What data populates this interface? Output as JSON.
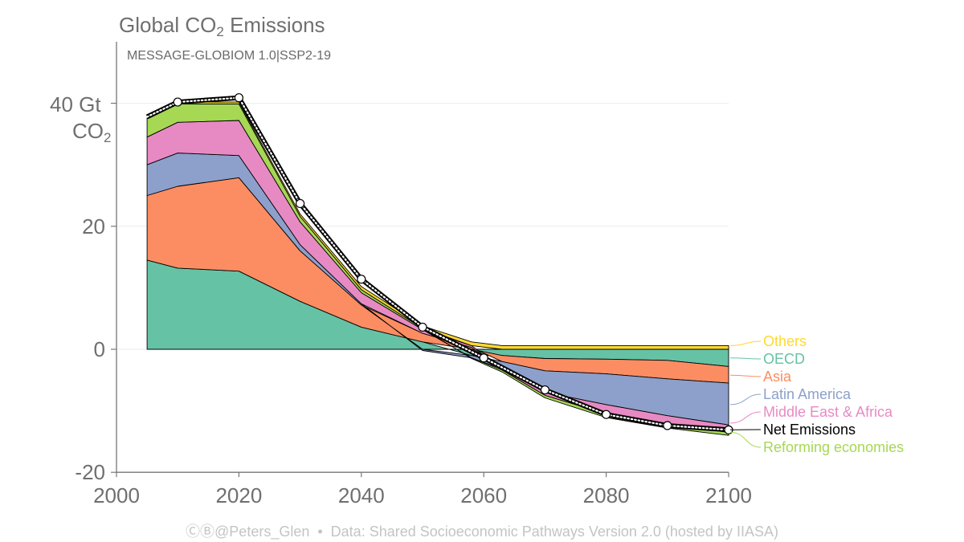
{
  "title": {
    "main": "Global CO",
    "sub": "2",
    "rest": " Emissions"
  },
  "subtitle": "MESSAGE-GLOBIOM 1.0|SSP2-19",
  "y_axis_label": {
    "value": "40 Gt",
    "unit_main": "CO",
    "unit_sub": "2"
  },
  "footer": {
    "handle": "ⒸⒷ@Peters_Glen",
    "separator": "•",
    "source": "Data: Shared Socioeconomic Pathways Version 2.0 (hosted by IIASA)"
  },
  "chart_data": {
    "type": "area",
    "stacked": true,
    "x": [
      2005,
      2010,
      2020,
      2030,
      2040,
      2050,
      2058,
      2063,
      2070,
      2080,
      2090,
      2100
    ],
    "xlim": [
      2000,
      2100
    ],
    "ylim": [
      -20,
      50
    ],
    "x_ticks": [
      "2000",
      "2020",
      "2040",
      "2060",
      "2080",
      "2100"
    ],
    "y_ticks": [
      {
        "value": 0,
        "label": "0"
      },
      {
        "value": 20,
        "label": "20"
      },
      {
        "value": -20,
        "label": "-20"
      }
    ],
    "grid": true,
    "legend_position": "right",
    "series": [
      {
        "name": "OECD",
        "color": "#66c2a5",
        "values": [
          14.5,
          13.2,
          12.7,
          7.8,
          3.6,
          1.2,
          -1.0,
          -1.0,
          -1.5,
          -1.6,
          -1.8,
          -2.8
        ]
      },
      {
        "name": "Asia",
        "color": "#fc8d62",
        "values": [
          10.5,
          13.3,
          15.2,
          8.2,
          3.6,
          1.4,
          0.3,
          -1.0,
          -2.0,
          -2.4,
          -3.0,
          -2.7
        ]
      },
      {
        "name": "Latin America",
        "color": "#8da0cb",
        "values": [
          5.0,
          5.4,
          3.6,
          1.0,
          0.2,
          -0.2,
          -0.4,
          -1.2,
          -3.5,
          -5.0,
          -6.0,
          -6.8
        ]
      },
      {
        "name": "Middle East & Africa",
        "color": "#e78ac3",
        "values": [
          4.5,
          5.0,
          5.7,
          3.7,
          1.8,
          0.6,
          0.3,
          -0.2,
          -0.5,
          -1.5,
          -1.5,
          -1.2
        ]
      },
      {
        "name": "Reforming economies",
        "color": "#a6d854",
        "values": [
          3.0,
          3.0,
          2.7,
          0.9,
          0.5,
          0.2,
          -0.1,
          -0.3,
          -0.4,
          -0.6,
          -0.5,
          -0.5
        ]
      },
      {
        "name": "Others",
        "color": "#ffd92f",
        "values": [
          0.3,
          0.3,
          0.3,
          0.4,
          0.5,
          0.4,
          0.6,
          0.6,
          0.6,
          0.6,
          0.6,
          0.6
        ]
      }
    ],
    "net_emissions": {
      "name": "Net Emissions",
      "x": [
        2005,
        2010,
        2020,
        2030,
        2040,
        2050,
        2060,
        2070,
        2080,
        2090,
        2100
      ],
      "values": [
        37.8,
        40.2,
        40.9,
        23.7,
        11.4,
        3.6,
        -1.4,
        -6.6,
        -10.6,
        -12.4,
        -13.1
      ],
      "markers_at": [
        2010,
        2020,
        2030,
        2040,
        2050,
        2060,
        2070,
        2080,
        2090,
        2100
      ]
    },
    "legend": [
      {
        "label": "Others",
        "color": "#ffd92f",
        "value": 0.6
      },
      {
        "label": "OECD",
        "color": "#66c2a5",
        "value": -1.4
      },
      {
        "label": "Asia",
        "color": "#fc8d62",
        "value": -4.2
      },
      {
        "label": "Latin America",
        "color": "#8da0cb",
        "value": -9.0
      },
      {
        "label": "Middle East & Africa",
        "color": "#e78ac3",
        "value": -12.0
      },
      {
        "label": "Net Emissions",
        "color": "#000000",
        "value": -13.1
      },
      {
        "label": "Reforming economies",
        "color": "#a6d854",
        "value": -13.5
      }
    ]
  }
}
